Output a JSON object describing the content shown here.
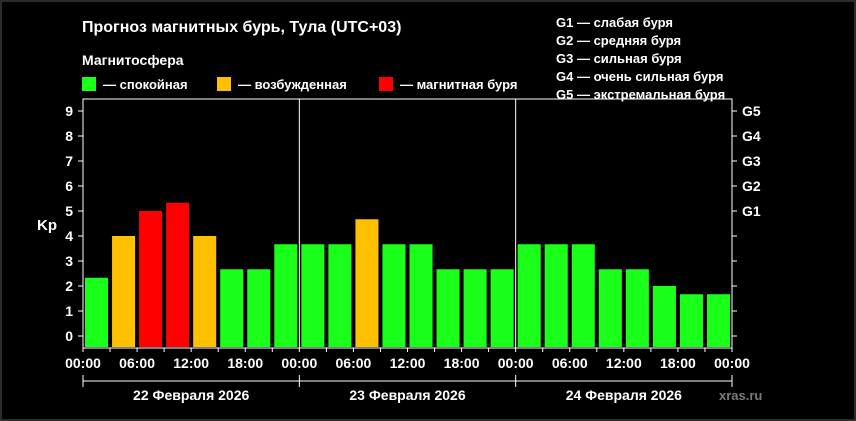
{
  "header": {
    "title": "Прогноз магнитных бурь, Тула (UTC+03)"
  },
  "legend": {
    "title": "Магнитосфера",
    "items": [
      {
        "label": "— спокойная",
        "color": "#1aff1a"
      },
      {
        "label": "— возбужденная",
        "color": "#ffc000"
      },
      {
        "label": "— магнитная буря",
        "color": "#ff0000"
      }
    ]
  },
  "g_legend": [
    "G1 — слабая буря",
    "G2 — средняя буря",
    "G3 — сильная буря",
    "G4 — очень сильная буря",
    "G5 — экстремальная буря"
  ],
  "watermark": "xras.ru",
  "chart_data": {
    "type": "bar",
    "ylabel": "Kp",
    "ylim": [
      0,
      9
    ],
    "y_ticks": [
      "0",
      "1",
      "2",
      "3",
      "4",
      "5",
      "6",
      "7",
      "8",
      "9"
    ],
    "right_ticks": [
      "G1",
      "G2",
      "G3",
      "G4",
      "G5"
    ],
    "right_tick_values": [
      5,
      6,
      7,
      8,
      9
    ],
    "x_tick_labels": [
      "00:00",
      "06:00",
      "12:00",
      "18:00",
      "00:00",
      "06:00",
      "12:00",
      "18:00",
      "00:00",
      "06:00",
      "12:00",
      "18:00",
      "00:00"
    ],
    "days": [
      "22 Февраля 2026",
      "23 Февраля 2026",
      "24 Февраля 2026"
    ],
    "categories": [
      "22 00:00",
      "22 03:00",
      "22 06:00",
      "22 09:00",
      "22 12:00",
      "22 15:00",
      "22 18:00",
      "22 21:00",
      "23 00:00",
      "23 03:00",
      "23 06:00",
      "23 09:00",
      "23 12:00",
      "23 15:00",
      "23 18:00",
      "23 21:00",
      "24 00:00",
      "24 03:00",
      "24 06:00",
      "24 09:00",
      "24 12:00",
      "24 15:00",
      "24 18:00",
      "24 21:00"
    ],
    "values": [
      2.33,
      4.0,
      5.0,
      5.33,
      4.0,
      2.67,
      2.67,
      3.67,
      3.67,
      3.67,
      4.67,
      3.67,
      3.67,
      2.67,
      2.67,
      2.67,
      3.67,
      3.67,
      3.67,
      2.67,
      2.67,
      2.0,
      1.67,
      1.67
    ],
    "levels": [
      "calm",
      "active",
      "storm",
      "storm",
      "active",
      "calm",
      "calm",
      "calm",
      "calm",
      "calm",
      "active",
      "calm",
      "calm",
      "calm",
      "calm",
      "calm",
      "calm",
      "calm",
      "calm",
      "calm",
      "calm",
      "calm",
      "calm",
      "calm"
    ],
    "colors": {
      "calm": "#1aff1a",
      "active": "#ffc000",
      "storm": "#ff0000"
    },
    "grid": false
  }
}
